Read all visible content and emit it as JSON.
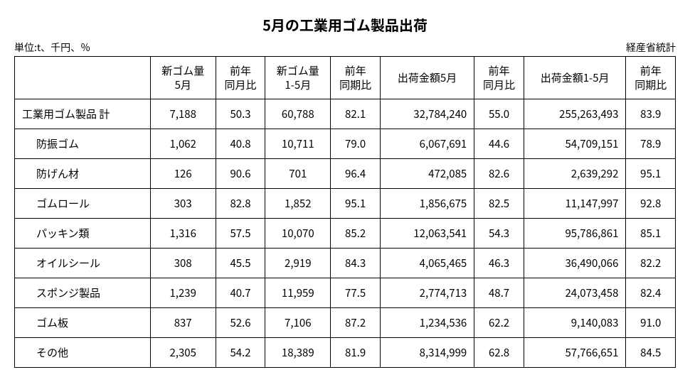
{
  "title": "5月の工業用ゴム製品出荷",
  "unit_label": "単位:t、千円、％",
  "source_label": "経産省統計",
  "table": {
    "columns": [
      "",
      "新ゴム量\n5月",
      "前年\n同月比",
      "新ゴム量\n1-5月",
      "前年\n同期比",
      "出荷金額5月",
      "前年\n同月比",
      "出荷金額1-5月",
      "前年\n同期比"
    ],
    "rows": [
      {
        "category": "工業用ゴム製品 計",
        "is_total": true,
        "cells": [
          "7,188",
          "50.3",
          "60,788",
          "82.1",
          "32,784,240",
          "55.0",
          "255,263,493",
          "83.9"
        ]
      },
      {
        "category": "防振ゴム",
        "is_total": false,
        "cells": [
          "1,062",
          "40.8",
          "10,711",
          "79.0",
          "6,067,691",
          "44.6",
          "54,709,151",
          "78.9"
        ]
      },
      {
        "category": "防げん材",
        "is_total": false,
        "cells": [
          "126",
          "90.6",
          "701",
          "96.4",
          "472,085",
          "82.6",
          "2,639,292",
          "95.1"
        ]
      },
      {
        "category": "ゴムロール",
        "is_total": false,
        "cells": [
          "303",
          "82.8",
          "1,852",
          "95.1",
          "1,856,675",
          "82.5",
          "11,147,997",
          "92.8"
        ]
      },
      {
        "category": "パッキン類",
        "is_total": false,
        "cells": [
          "1,316",
          "57.5",
          "10,070",
          "85.2",
          "12,063,541",
          "54.3",
          "95,786,861",
          "85.1"
        ]
      },
      {
        "category": "オイルシール",
        "is_total": false,
        "cells": [
          "308",
          "45.5",
          "2,919",
          "84.3",
          "4,065,465",
          "46.3",
          "36,490,066",
          "82.2"
        ]
      },
      {
        "category": "スポンジ製品",
        "is_total": false,
        "cells": [
          "1,239",
          "40.7",
          "11,959",
          "77.5",
          "2,774,713",
          "48.7",
          "24,073,458",
          "82.4"
        ]
      },
      {
        "category": "ゴム板",
        "is_total": false,
        "cells": [
          "837",
          "52.6",
          "7,106",
          "87.2",
          "1,234,536",
          "62.2",
          "9,140,083",
          "91.0"
        ]
      },
      {
        "category": "その他",
        "is_total": false,
        "cells": [
          "2,305",
          "54.2",
          "18,389",
          "81.9",
          "8,314,999",
          "62.8",
          "57,766,651",
          "84.5"
        ]
      }
    ],
    "column_classes": [
      "col-category",
      "col-med",
      "col-narrow",
      "col-med",
      "col-narrow",
      "col-wide",
      "col-narrow",
      "col-wider",
      "col-narrow"
    ],
    "cell_align": [
      "num-center",
      "num-center",
      "num-center",
      "num-center",
      "num-right",
      "num-center",
      "num-right",
      "num-center"
    ]
  },
  "styling": {
    "title_fontsize": 20,
    "body_fontsize": 15,
    "label_fontsize": 14,
    "border_color": "#000000",
    "background_color": "#ffffff",
    "text_color": "#000000"
  }
}
